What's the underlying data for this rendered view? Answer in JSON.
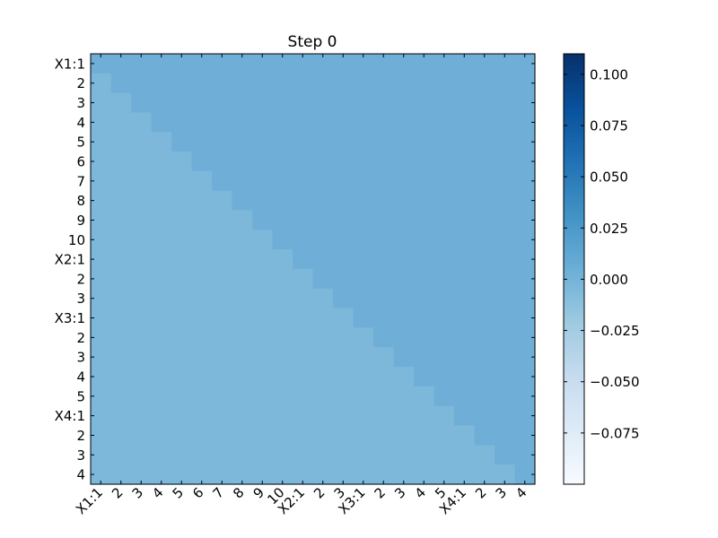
{
  "chart_data": {
    "type": "heatmap",
    "title": "Step 0",
    "xlabel": "",
    "ylabel": "",
    "row_labels": [
      "X1:1",
      "2",
      "3",
      "4",
      "5",
      "6",
      "7",
      "8",
      "9",
      "10",
      "X2:1",
      "2",
      "3",
      "X3:1",
      "2",
      "3",
      "4",
      "5",
      "X4:1",
      "2",
      "3",
      "4"
    ],
    "col_labels": [
      "X1:1",
      "2",
      "3",
      "4",
      "5",
      "6",
      "7",
      "8",
      "9",
      "10",
      "X2:1",
      "2",
      "3",
      "X3:1",
      "2",
      "3",
      "4",
      "5",
      "X4:1",
      "2",
      "3",
      "4"
    ],
    "values_rule": "upper triangle (column index >= row index) = 0.0; strictly lower triangle = -0.005",
    "upper_value": 0.0,
    "lower_value": -0.005,
    "colorbar": {
      "colormap": "Blues",
      "vmin": -0.1,
      "vmax": 0.11,
      "ticks": [
        0.1,
        0.075,
        0.05,
        0.025,
        0.0,
        -0.025,
        -0.05,
        -0.075
      ],
      "tick_labels": [
        "0.100",
        "0.075",
        "0.050",
        "0.025",
        "0.000",
        "−0.025",
        "−0.050",
        "−0.075"
      ]
    },
    "colors": {
      "upper_cell": "#6fafd7",
      "lower_cell": "#7db8da",
      "frame": "#000000"
    }
  }
}
